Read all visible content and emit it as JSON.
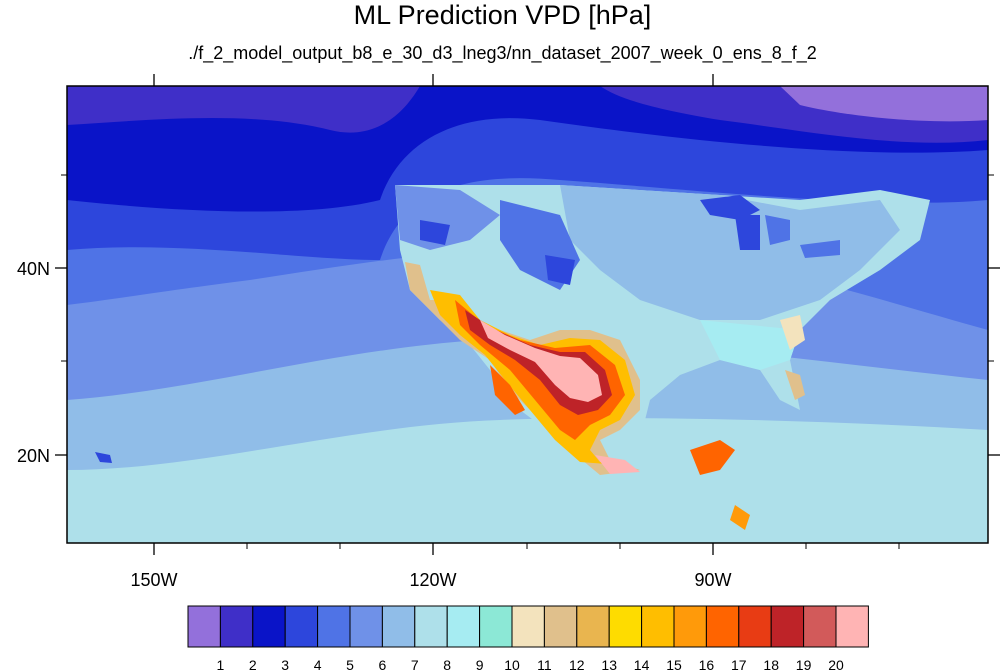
{
  "title": "ML Prediction VPD [hPa]",
  "subtitle": "./f_2_model_output_b8_e_30_d3_lneg3/nn_dataset_2007_week_0_ens_8_f_2",
  "axes": {
    "lon_ticks": [
      "150W",
      "120W",
      "90W"
    ],
    "lat_ticks": [
      "40N",
      "20N"
    ]
  },
  "colorbar": {
    "labels": [
      "1",
      "2",
      "3",
      "4",
      "5",
      "6",
      "7",
      "8",
      "9",
      "10",
      "11",
      "12",
      "13",
      "14",
      "15",
      "16",
      "17",
      "18",
      "19",
      "20"
    ],
    "colors": [
      "#9370db",
      "#3f2fc8",
      "#0a14c8",
      "#2d46dc",
      "#4f73e6",
      "#6f91e8",
      "#90bde8",
      "#aee0ea",
      "#a6ecf2",
      "#8ce8d6",
      "#f3e3bd",
      "#e0c08c",
      "#e9b54f",
      "#fedc00",
      "#ffbe00",
      "#ff9a0a",
      "#ff6400",
      "#e83c14",
      "#be2328",
      "#d25a5a",
      "#ffb4b4"
    ]
  }
}
